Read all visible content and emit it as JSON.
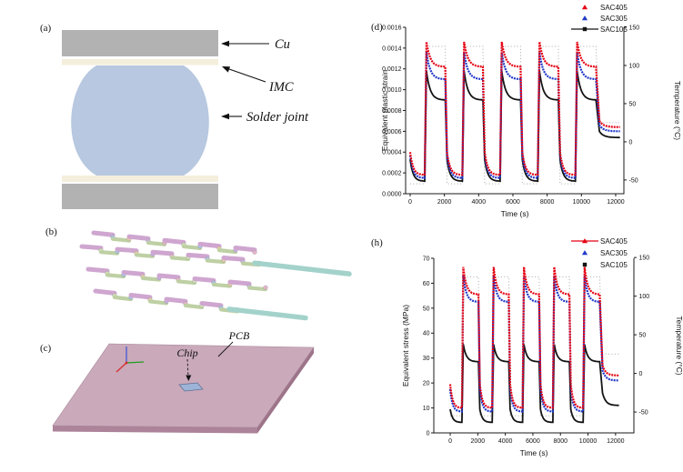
{
  "panel_a": {
    "label": "(a)",
    "cu_label": "Cu",
    "imc_label": "IMC",
    "solder_label": "Solder joint",
    "colors": {
      "copper": "#b2b2b3",
      "imc": "#f4eedc",
      "solder": "#b7c8e0"
    }
  },
  "panel_b": {
    "label": "(b)",
    "colors": {
      "top_trace": "#cfa6d0",
      "bottom_trace": "#bed0a4",
      "lead": "#a3d2cb",
      "balls": [
        "#a9c3e3",
        "#e8cba9",
        "#c6b2de",
        "#e4b4c9",
        "#cfe0b6"
      ]
    }
  },
  "panel_c": {
    "label": "(c)",
    "chip_label": "Chip",
    "pcb_label": "PCB",
    "colors": {
      "board": "#c9a9ba",
      "board_front": "#ac8399",
      "board_side": "#9d7489",
      "chip": "#9db4d8",
      "axis_x": "#d42a2a",
      "axis_y": "#1f9e1f",
      "axis_z": "#3a55d4"
    }
  },
  "chart_data": [
    {
      "panel_label": "(d)",
      "type": "scatter",
      "xlabel": "Time (s)",
      "ylabel_left": "Equivalent plastic strain",
      "ylabel_right": "Temperature (°C)",
      "axes": {
        "xlim": [
          -265,
          12480
        ],
        "x_ticks": [
          {
            "v": 0,
            "label": "0"
          },
          {
            "v": 2000,
            "label": "2000"
          },
          {
            "v": 4000,
            "label": "4000"
          },
          {
            "v": 6000,
            "label": "6000"
          },
          {
            "v": 8000,
            "label": "8000"
          },
          {
            "v": 10000,
            "label": "10000"
          },
          {
            "v": 12000,
            "label": "12000"
          }
        ],
        "ylim_left": [
          0,
          0.0016
        ],
        "y_ticks_left": [
          {
            "v": 0.0,
            "label": "0.0000"
          },
          {
            "v": 0.0002,
            "label": "0.0002"
          },
          {
            "v": 0.0004,
            "label": "0.0004"
          },
          {
            "v": 0.0006,
            "label": "0.0006"
          },
          {
            "v": 0.0008,
            "label": "0.0008"
          },
          {
            "v": 0.001,
            "label": "0.0010"
          },
          {
            "v": 0.0012,
            "label": "0.0012"
          },
          {
            "v": 0.0014,
            "label": "0.0014"
          },
          {
            "v": 0.0016,
            "label": "0.0016"
          }
        ],
        "ylim_right": [
          -68,
          150
        ],
        "y_ticks_right": [
          {
            "v": -50,
            "label": "-50"
          },
          {
            "v": 0,
            "label": "0"
          },
          {
            "v": 50,
            "label": "50"
          },
          {
            "v": 100,
            "label": "100"
          },
          {
            "v": 150,
            "label": "150"
          }
        ],
        "grid": false,
        "legend_position": "top-right"
      },
      "dwells": [
        {
          "type": "cold",
          "t": [
            0,
            850
          ]
        },
        {
          "type": "hot",
          "t": [
            950,
            2050
          ]
        },
        {
          "type": "cold",
          "t": [
            2150,
            3050
          ]
        },
        {
          "type": "hot",
          "t": [
            3150,
            4250
          ]
        },
        {
          "type": "cold",
          "t": [
            4350,
            5250
          ]
        },
        {
          "type": "hot",
          "t": [
            5350,
            6450
          ]
        },
        {
          "type": "cold",
          "t": [
            6550,
            7450
          ]
        },
        {
          "type": "hot",
          "t": [
            7550,
            8650
          ]
        },
        {
          "type": "cold",
          "t": [
            8750,
            9650
          ]
        },
        {
          "type": "hot",
          "t": [
            9750,
            10850
          ]
        },
        {
          "type": "final",
          "t": [
            11050,
            12250
          ]
        }
      ],
      "series": [
        {
          "name": "SAC405",
          "color": "#e50011",
          "marker": "triangle",
          "legend_style": "marker",
          "levels": {
            "cold": [
              0.0004,
              0.00018
            ],
            "hot": [
              0.00146,
              0.00122
            ],
            "final": [
              0.0007,
              0.00064
            ]
          }
        },
        {
          "name": "SAC305",
          "color": "#2038c8",
          "marker": "triangle",
          "legend_style": "marker",
          "levels": {
            "cold": [
              0.00037,
              0.00015
            ],
            "hot": [
              0.00136,
              0.0011
            ],
            "final": [
              0.00066,
              0.0006
            ]
          }
        },
        {
          "name": "SAC105",
          "color": "#141414",
          "marker": "square",
          "legend_style": "line-marker",
          "levels": {
            "cold": [
              0.00033,
              0.00012
            ],
            "hot": [
              0.00118,
              0.0009
            ],
            "final": [
              0.0006,
              0.00054
            ]
          }
        }
      ],
      "temperature_profile": {
        "color": "#a8a8a8",
        "style": "dotted",
        "high_c": 125,
        "low_c": -55,
        "end_c": 25,
        "points": [
          [
            0,
            -55
          ],
          [
            850,
            -55
          ],
          [
            950,
            125
          ],
          [
            2050,
            125
          ],
          [
            2150,
            -55
          ],
          [
            3050,
            -55
          ],
          [
            3150,
            125
          ],
          [
            4250,
            125
          ],
          [
            4350,
            -55
          ],
          [
            5250,
            -55
          ],
          [
            5350,
            125
          ],
          [
            6450,
            125
          ],
          [
            6550,
            -55
          ],
          [
            7450,
            -55
          ],
          [
            7550,
            125
          ],
          [
            8650,
            125
          ],
          [
            8750,
            -55
          ],
          [
            9650,
            -55
          ],
          [
            9750,
            125
          ],
          [
            10850,
            125
          ],
          [
            11050,
            25
          ],
          [
            12250,
            25
          ]
        ]
      }
    },
    {
      "panel_label": "(h)",
      "type": "scatter",
      "xlabel": "Time (s)",
      "ylabel_left": "Equivalent stress (MPa)",
      "ylabel_right": "Temperature (°C)",
      "axes": {
        "xlim": [
          -1190,
          13330
        ],
        "x_ticks": [
          {
            "v": 0,
            "label": "0"
          },
          {
            "v": 2000,
            "label": "2000"
          },
          {
            "v": 4000,
            "label": "4000"
          },
          {
            "v": 6000,
            "label": "6000"
          },
          {
            "v": 8000,
            "label": "8000"
          },
          {
            "v": 10000,
            "label": "10000"
          },
          {
            "v": 12000,
            "label": "12000"
          }
        ],
        "ylim_left": [
          0,
          70
        ],
        "y_ticks_left": [
          {
            "v": 0,
            "label": "0"
          },
          {
            "v": 10,
            "label": "10"
          },
          {
            "v": 20,
            "label": "20"
          },
          {
            "v": 30,
            "label": "30"
          },
          {
            "v": 40,
            "label": "40"
          },
          {
            "v": 50,
            "label": "50"
          },
          {
            "v": 60,
            "label": "60"
          },
          {
            "v": 70,
            "label": "70"
          }
        ],
        "ylim_right": [
          -77,
          149
        ],
        "y_ticks_right": [
          {
            "v": -50,
            "label": "-50"
          },
          {
            "v": 0,
            "label": "0"
          },
          {
            "v": 50,
            "label": "50"
          },
          {
            "v": 100,
            "label": "100"
          },
          {
            "v": 150,
            "label": "150"
          }
        ],
        "grid": false,
        "legend_position": "top-right"
      },
      "dwells": [
        {
          "type": "cold",
          "t": [
            0,
            850
          ]
        },
        {
          "type": "hot",
          "t": [
            950,
            2050
          ]
        },
        {
          "type": "cold",
          "t": [
            2150,
            3050
          ]
        },
        {
          "type": "hot",
          "t": [
            3150,
            4250
          ]
        },
        {
          "type": "cold",
          "t": [
            4350,
            5250
          ]
        },
        {
          "type": "hot",
          "t": [
            5350,
            6450
          ]
        },
        {
          "type": "cold",
          "t": [
            6550,
            7450
          ]
        },
        {
          "type": "hot",
          "t": [
            7550,
            8650
          ]
        },
        {
          "type": "cold",
          "t": [
            8750,
            9650
          ]
        },
        {
          "type": "hot",
          "t": [
            9750,
            10850
          ]
        },
        {
          "type": "final",
          "t": [
            11050,
            12250
          ]
        }
      ],
      "series": [
        {
          "name": "SAC405",
          "color": "#e50011",
          "marker": "triangle",
          "legend_style": "line-marker",
          "levels": {
            "cold": [
              19.5,
              10.0
            ],
            "hot": [
              66.5,
              55.5
            ],
            "final": [
              27,
              23
            ]
          }
        },
        {
          "name": "SAC305",
          "color": "#2038c8",
          "marker": "triangle",
          "legend_style": "marker",
          "levels": {
            "cold": [
              17.5,
              8.5
            ],
            "hot": [
              63,
              52.5
            ],
            "final": [
              25,
              21
            ]
          }
        },
        {
          "name": "SAC105",
          "color": "#141414",
          "marker": "square",
          "legend_style": "marker",
          "levels": {
            "cold": [
              9.5,
              4.2
            ],
            "hot": [
              35.5,
              28.5
            ],
            "final": [
              16,
              11
            ]
          }
        }
      ],
      "temperature_profile": {
        "color": "#a8a8a8",
        "style": "dotted",
        "high_c": 125,
        "low_c": -55,
        "end_c": 25,
        "points": [
          [
            0,
            -55
          ],
          [
            850,
            -55
          ],
          [
            950,
            125
          ],
          [
            2050,
            125
          ],
          [
            2150,
            -55
          ],
          [
            3050,
            -55
          ],
          [
            3150,
            125
          ],
          [
            4250,
            125
          ],
          [
            4350,
            -55
          ],
          [
            5250,
            -55
          ],
          [
            5350,
            125
          ],
          [
            6450,
            125
          ],
          [
            6550,
            -55
          ],
          [
            7450,
            -55
          ],
          [
            7550,
            125
          ],
          [
            8650,
            125
          ],
          [
            8750,
            -55
          ],
          [
            9650,
            -55
          ],
          [
            9750,
            125
          ],
          [
            10850,
            125
          ],
          [
            11050,
            25
          ],
          [
            12250,
            25
          ]
        ]
      }
    }
  ]
}
